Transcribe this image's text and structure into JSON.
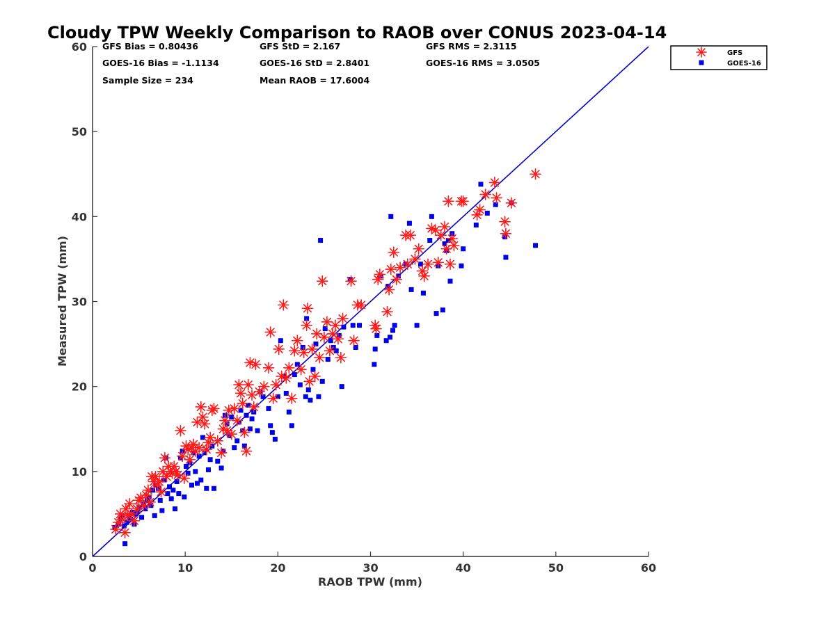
{
  "chart_data": {
    "type": "scatter",
    "title": "Cloudy TPW Weekly Comparison to RAOB over CONUS 2023-04-14",
    "xlabel": "RAOB TPW (mm)",
    "ylabel": "Measured TPW (mm)",
    "xlim": [
      0,
      60
    ],
    "ylim": [
      0,
      60
    ],
    "xticks": [
      "0",
      "10",
      "20",
      "30",
      "40",
      "50",
      "60"
    ],
    "yticks": [
      "0",
      "10",
      "20",
      "30",
      "40",
      "50",
      "60"
    ],
    "grid": false,
    "legend_position": "outside-top-right",
    "stats": [
      [
        "GFS Bias = 0.80436",
        "GFS StD = 2.167",
        "GFS RMS = 2.3115"
      ],
      [
        "GOES-16 Bias = -1.1134",
        "GOES-16 StD = 2.8401",
        "GOES-16 RMS = 3.0505"
      ],
      [
        "Sample Size = 234",
        "Mean RAOB = 17.6004",
        ""
      ]
    ],
    "reference_line": {
      "type": "one-to-one",
      "color": "#0000cc"
    },
    "series": [
      {
        "name": "GFS",
        "marker": "asterisk",
        "color": "#ff1a1a",
        "points": [
          [
            2.5,
            3.2
          ],
          [
            2.8,
            4.0
          ],
          [
            3.0,
            5.0
          ],
          [
            3.2,
            4.4
          ],
          [
            3.5,
            2.8
          ],
          [
            3.6,
            5.6
          ],
          [
            3.8,
            4.8
          ],
          [
            4.0,
            6.2
          ],
          [
            4.2,
            5.0
          ],
          [
            4.5,
            4.2
          ],
          [
            4.8,
            5.6
          ],
          [
            5.0,
            6.6
          ],
          [
            5.2,
            6.9
          ],
          [
            5.5,
            6.0
          ],
          [
            5.8,
            7.2
          ],
          [
            6.0,
            7.8
          ],
          [
            6.2,
            6.4
          ],
          [
            6.4,
            9.4
          ],
          [
            6.6,
            8.8
          ],
          [
            6.8,
            9.4
          ],
          [
            7.0,
            8.4
          ],
          [
            7.2,
            8.8
          ],
          [
            7.4,
            7.6
          ],
          [
            7.6,
            10.0
          ],
          [
            7.8,
            11.6
          ],
          [
            8.0,
            9.4
          ],
          [
            8.2,
            10.6
          ],
          [
            8.4,
            10.0
          ],
          [
            8.6,
            9.8
          ],
          [
            8.8,
            10.6
          ],
          [
            9.0,
            10.0
          ],
          [
            9.2,
            9.6
          ],
          [
            9.5,
            14.8
          ],
          [
            9.7,
            11.8
          ],
          [
            9.9,
            9.2
          ],
          [
            10.1,
            13.0
          ],
          [
            10.3,
            12.6
          ],
          [
            10.5,
            11.4
          ],
          [
            10.7,
            12.8
          ],
          [
            10.9,
            13.2
          ],
          [
            11.1,
            12.4
          ],
          [
            11.3,
            15.8
          ],
          [
            11.5,
            12.8
          ],
          [
            11.7,
            17.6
          ],
          [
            11.9,
            16.4
          ],
          [
            12.1,
            15.6
          ],
          [
            12.3,
            12.6
          ],
          [
            12.5,
            13.4
          ],
          [
            12.7,
            14.0
          ],
          [
            12.9,
            17.2
          ],
          [
            13.1,
            17.4
          ],
          [
            13.5,
            13.6
          ],
          [
            13.9,
            12.2
          ],
          [
            14.1,
            15.0
          ],
          [
            14.3,
            16.0
          ],
          [
            14.5,
            14.8
          ],
          [
            14.7,
            17.2
          ],
          [
            15.0,
            14.4
          ],
          [
            15.3,
            17.4
          ],
          [
            15.6,
            16.0
          ],
          [
            15.8,
            20.2
          ],
          [
            16.0,
            19.2
          ],
          [
            16.2,
            18.0
          ],
          [
            16.4,
            14.6
          ],
          [
            16.6,
            12.4
          ],
          [
            16.8,
            20.2
          ],
          [
            17.0,
            22.8
          ],
          [
            17.2,
            19.0
          ],
          [
            17.4,
            17.6
          ],
          [
            17.6,
            22.6
          ],
          [
            18.0,
            19.4
          ],
          [
            18.5,
            20.0
          ],
          [
            19.0,
            22.2
          ],
          [
            19.2,
            26.4
          ],
          [
            19.5,
            18.6
          ],
          [
            19.8,
            20.2
          ],
          [
            20.1,
            24.4
          ],
          [
            20.4,
            21.2
          ],
          [
            20.6,
            29.6
          ],
          [
            20.9,
            21.0
          ],
          [
            21.2,
            22.2
          ],
          [
            21.5,
            18.6
          ],
          [
            21.8,
            24.2
          ],
          [
            22.1,
            25.4
          ],
          [
            22.5,
            22.0
          ],
          [
            22.8,
            24.0
          ],
          [
            23.1,
            27.2
          ],
          [
            23.2,
            29.2
          ],
          [
            23.4,
            20.6
          ],
          [
            23.7,
            24.4
          ],
          [
            24.0,
            21.2
          ],
          [
            24.2,
            26.2
          ],
          [
            24.5,
            23.4
          ],
          [
            24.8,
            32.4
          ],
          [
            25.0,
            25.8
          ],
          [
            25.3,
            27.6
          ],
          [
            25.6,
            24.2
          ],
          [
            25.9,
            26.2
          ],
          [
            26.2,
            27.2
          ],
          [
            26.5,
            25.6
          ],
          [
            26.8,
            23.4
          ],
          [
            27.0,
            28.0
          ],
          [
            27.9,
            32.4
          ],
          [
            28.2,
            25.4
          ],
          [
            28.6,
            29.6
          ],
          [
            29.0,
            29.6
          ],
          [
            30.5,
            27.2
          ],
          [
            30.6,
            26.8
          ],
          [
            30.8,
            32.6
          ],
          [
            31.0,
            33.2
          ],
          [
            31.8,
            28.8
          ],
          [
            32.0,
            31.4
          ],
          [
            32.2,
            33.8
          ],
          [
            32.5,
            35.8
          ],
          [
            32.8,
            32.6
          ],
          [
            33.2,
            34.0
          ],
          [
            33.8,
            37.8
          ],
          [
            34.0,
            34.4
          ],
          [
            34.3,
            37.8
          ],
          [
            34.8,
            35.0
          ],
          [
            35.2,
            36.2
          ],
          [
            35.6,
            33.6
          ],
          [
            35.8,
            33.0
          ],
          [
            36.2,
            34.4
          ],
          [
            36.6,
            38.6
          ],
          [
            37.0,
            38.4
          ],
          [
            37.3,
            34.6
          ],
          [
            37.6,
            37.8
          ],
          [
            38.0,
            38.8
          ],
          [
            38.2,
            36.2
          ],
          [
            38.4,
            41.8
          ],
          [
            38.6,
            34.4
          ],
          [
            38.8,
            37.4
          ],
          [
            39.0,
            36.6
          ],
          [
            39.8,
            41.8
          ],
          [
            40.0,
            41.8
          ],
          [
            41.5,
            40.2
          ],
          [
            41.8,
            40.8
          ],
          [
            42.4,
            42.6
          ],
          [
            43.4,
            44.0
          ],
          [
            43.6,
            42.2
          ],
          [
            44.5,
            39.4
          ],
          [
            44.6,
            38.0
          ],
          [
            45.2,
            41.6
          ],
          [
            47.8,
            45.0
          ]
        ]
      },
      {
        "name": "GOES-16",
        "marker": "square",
        "color": "#0000e6",
        "points": [
          [
            2.4,
            3.4
          ],
          [
            2.8,
            3.8
          ],
          [
            3.0,
            4.4
          ],
          [
            3.2,
            4.8
          ],
          [
            3.4,
            3.6
          ],
          [
            3.5,
            1.5
          ],
          [
            3.7,
            4.0
          ],
          [
            3.9,
            4.8
          ],
          [
            4.1,
            4.4
          ],
          [
            4.3,
            5.2
          ],
          [
            4.5,
            3.8
          ],
          [
            4.7,
            5.0
          ],
          [
            4.9,
            5.4
          ],
          [
            5.1,
            5.8
          ],
          [
            5.3,
            4.6
          ],
          [
            5.5,
            6.2
          ],
          [
            5.7,
            5.6
          ],
          [
            5.9,
            6.6
          ],
          [
            6.1,
            7.0
          ],
          [
            6.3,
            6.0
          ],
          [
            6.5,
            7.8
          ],
          [
            6.7,
            4.8
          ],
          [
            6.9,
            8.4
          ],
          [
            7.1,
            8.0
          ],
          [
            7.3,
            6.6
          ],
          [
            7.5,
            5.4
          ],
          [
            7.7,
            9.0
          ],
          [
            7.9,
            11.6
          ],
          [
            8.1,
            7.4
          ],
          [
            8.3,
            8.2
          ],
          [
            8.5,
            6.8
          ],
          [
            8.7,
            7.8
          ],
          [
            8.9,
            5.6
          ],
          [
            9.1,
            8.8
          ],
          [
            9.3,
            7.4
          ],
          [
            9.5,
            11.6
          ],
          [
            9.7,
            12.4
          ],
          [
            9.9,
            7.0
          ],
          [
            10.1,
            10.6
          ],
          [
            10.3,
            9.8
          ],
          [
            10.5,
            11.0
          ],
          [
            10.7,
            8.4
          ],
          [
            10.9,
            12.2
          ],
          [
            11.1,
            10.0
          ],
          [
            11.3,
            8.6
          ],
          [
            11.5,
            11.8
          ],
          [
            11.7,
            9.0
          ],
          [
            11.9,
            14.0
          ],
          [
            12.1,
            12.2
          ],
          [
            12.3,
            8.0
          ],
          [
            12.5,
            10.2
          ],
          [
            12.7,
            11.4
          ],
          [
            12.9,
            13.0
          ],
          [
            13.1,
            8.0
          ],
          [
            13.5,
            11.2
          ],
          [
            13.9,
            10.4
          ],
          [
            14.1,
            12.4
          ],
          [
            14.3,
            16.6
          ],
          [
            14.5,
            15.6
          ],
          [
            14.8,
            14.2
          ],
          [
            15.0,
            16.4
          ],
          [
            15.3,
            12.8
          ],
          [
            15.6,
            13.6
          ],
          [
            15.8,
            15.8
          ],
          [
            16.0,
            17.2
          ],
          [
            16.2,
            14.8
          ],
          [
            16.4,
            13.0
          ],
          [
            16.6,
            16.6
          ],
          [
            16.8,
            17.8
          ],
          [
            17.0,
            15.0
          ],
          [
            17.2,
            16.2
          ],
          [
            17.4,
            17.0
          ],
          [
            17.8,
            14.8
          ],
          [
            18.1,
            19.4
          ],
          [
            18.4,
            18.8
          ],
          [
            19.0,
            17.4
          ],
          [
            19.2,
            15.4
          ],
          [
            19.4,
            14.6
          ],
          [
            19.7,
            13.8
          ],
          [
            20.0,
            18.8
          ],
          [
            20.3,
            25.4
          ],
          [
            20.6,
            21.2
          ],
          [
            20.9,
            19.2
          ],
          [
            21.2,
            17.0
          ],
          [
            21.5,
            15.4
          ],
          [
            21.8,
            21.4
          ],
          [
            22.1,
            22.6
          ],
          [
            22.4,
            20.2
          ],
          [
            22.7,
            24.6
          ],
          [
            23.0,
            18.8
          ],
          [
            23.1,
            28.0
          ],
          [
            23.3,
            19.6
          ],
          [
            23.5,
            18.4
          ],
          [
            23.8,
            22.0
          ],
          [
            24.1,
            25.0
          ],
          [
            24.4,
            18.8
          ],
          [
            24.6,
            37.2
          ],
          [
            24.8,
            20.6
          ],
          [
            25.1,
            26.8
          ],
          [
            25.4,
            23.2
          ],
          [
            25.7,
            25.4
          ],
          [
            26.0,
            24.6
          ],
          [
            26.3,
            24.2
          ],
          [
            26.6,
            26.0
          ],
          [
            26.9,
            20.0
          ],
          [
            27.1,
            27.0
          ],
          [
            27.8,
            32.6
          ],
          [
            28.1,
            27.2
          ],
          [
            28.4,
            24.6
          ],
          [
            28.8,
            27.2
          ],
          [
            30.4,
            22.6
          ],
          [
            30.5,
            24.4
          ],
          [
            30.7,
            26.0
          ],
          [
            31.1,
            33.0
          ],
          [
            31.7,
            25.4
          ],
          [
            31.9,
            31.8
          ],
          [
            32.1,
            25.8
          ],
          [
            32.2,
            40.0
          ],
          [
            32.4,
            26.6
          ],
          [
            32.6,
            27.2
          ],
          [
            33.0,
            33.0
          ],
          [
            33.8,
            34.4
          ],
          [
            34.2,
            39.2
          ],
          [
            34.4,
            31.4
          ],
          [
            35.0,
            27.2
          ],
          [
            35.4,
            34.4
          ],
          [
            35.7,
            31.0
          ],
          [
            36.4,
            37.2
          ],
          [
            36.6,
            40.0
          ],
          [
            37.1,
            28.6
          ],
          [
            37.3,
            34.2
          ],
          [
            37.8,
            29.0
          ],
          [
            38.0,
            36.8
          ],
          [
            38.2,
            36.0
          ],
          [
            38.4,
            37.2
          ],
          [
            38.6,
            32.4
          ],
          [
            38.8,
            38.0
          ],
          [
            39.8,
            34.2
          ],
          [
            40.0,
            36.2
          ],
          [
            41.4,
            39.0
          ],
          [
            41.9,
            43.8
          ],
          [
            42.6,
            40.4
          ],
          [
            43.5,
            41.4
          ],
          [
            44.5,
            37.6
          ],
          [
            44.6,
            35.2
          ],
          [
            45.2,
            41.6
          ],
          [
            47.8,
            36.6
          ]
        ]
      }
    ]
  }
}
